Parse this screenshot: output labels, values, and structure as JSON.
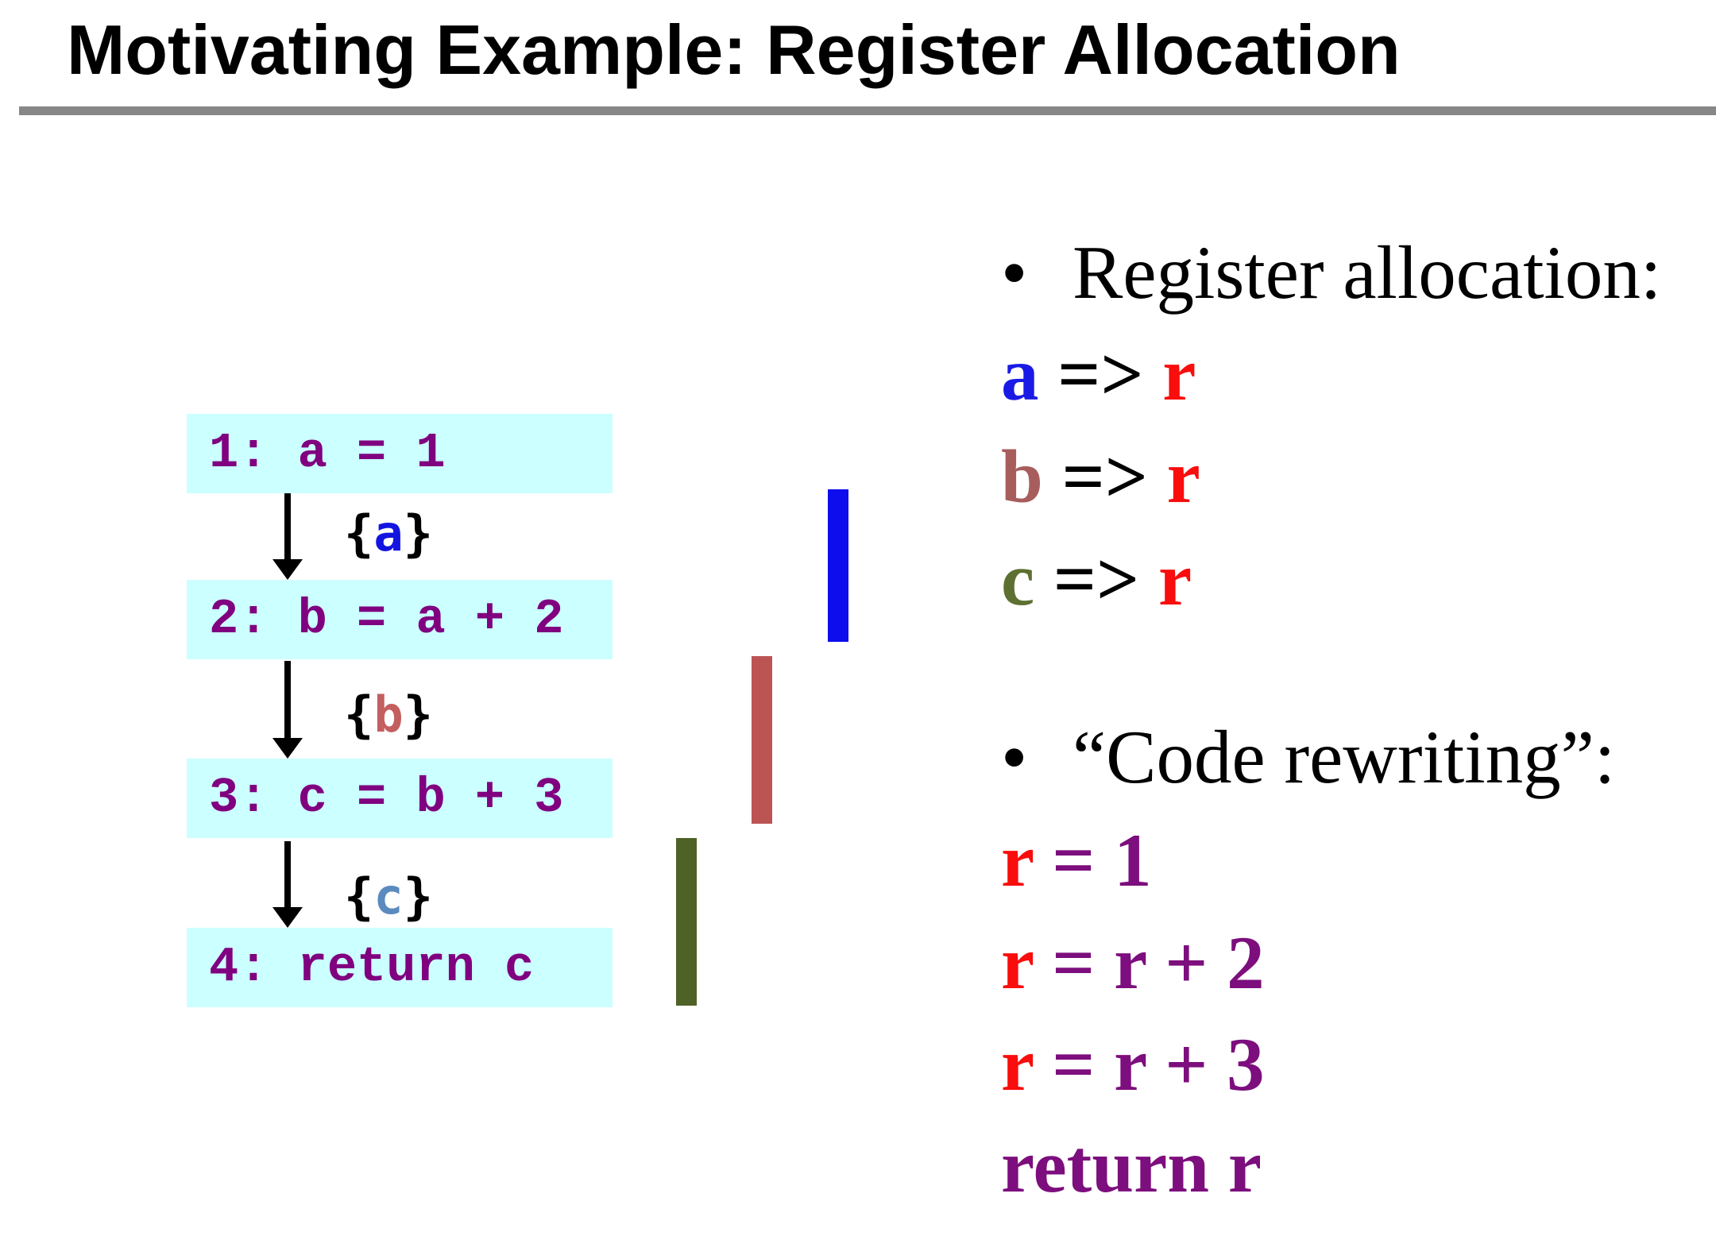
{
  "title": "Motivating Example: Register Allocation",
  "flow": {
    "nodes": [
      {
        "label": "1: a = 1"
      },
      {
        "label": "2: b = a + 2"
      },
      {
        "label": "3: c = b + 3"
      },
      {
        "label": "4: return c"
      }
    ],
    "edge_labels": [
      {
        "open": "{",
        "var": "a",
        "close": "}"
      },
      {
        "open": "{",
        "var": "b",
        "close": "}"
      },
      {
        "open": "{",
        "var": "c",
        "close": "}"
      }
    ]
  },
  "live_range_bars": [
    {
      "variable": "a",
      "color": "#0d0dee"
    },
    {
      "variable": "b",
      "color": "#bc5454"
    },
    {
      "variable": "c",
      "color": "#4e6227"
    }
  ],
  "right_panel": {
    "bullet": "•",
    "heading1": "Register allocation:",
    "mappings": [
      {
        "var": "a",
        "op": " => ",
        "reg": "r"
      },
      {
        "var": "b",
        "op": " => ",
        "reg": "r"
      },
      {
        "var": "c",
        "op": " => ",
        "reg": "r"
      }
    ],
    "heading2": "“Code rewriting”:",
    "code_lines": [
      {
        "red": "r",
        "purple": " = 1"
      },
      {
        "red": "r",
        "purple": " = r + 2"
      },
      {
        "red": "r",
        "purple": " = r + 3"
      },
      {
        "red": "",
        "purple": "return r"
      }
    ]
  },
  "colors": {
    "box_bg": "#ccffff",
    "box_text": "#800080",
    "edge_var_a": "#1414e0",
    "edge_var_b": "#c45f5f",
    "edge_var_c": "#5b8bbe",
    "bar_a": "#0d0dee",
    "bar_b": "#bc5454",
    "bar_c": "#4e6227",
    "map_var_a": "#1a1ae6",
    "map_var_b": "#a85d5d",
    "map_var_c": "#5d7031",
    "register_red": "#f90d0d",
    "code_purple": "#7d0e7d",
    "divider_gray": "#878787"
  }
}
